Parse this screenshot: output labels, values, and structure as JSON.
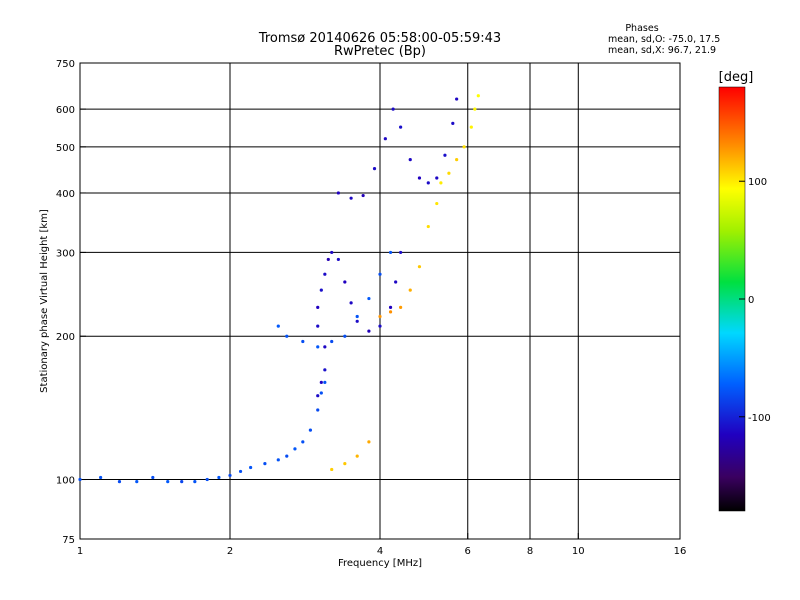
{
  "chart_data": {
    "type": "scatter",
    "title": "Tromsø 20140626 05:58:00-05:59:43",
    "subtitle": "RwPretec (Bp)",
    "xlabel": "Frequency [MHz]",
    "ylabel": "Stationary phase Virtual Height [km]",
    "x_scale": "log",
    "y_scale": "log",
    "xlim": [
      1,
      16
    ],
    "ylim": [
      75,
      750
    ],
    "x_ticks": [
      1,
      2,
      4,
      6,
      8,
      10,
      16
    ],
    "x_tick_labels": [
      "1",
      "2",
      "4",
      "6",
      "8",
      "10",
      "16"
    ],
    "y_ticks": [
      75,
      100,
      200,
      300,
      400,
      500,
      600,
      750
    ],
    "y_tick_labels": [
      "75",
      "100",
      "200",
      "300",
      "400",
      "500",
      "600",
      "750"
    ],
    "x_gridlines": [
      2,
      4,
      6,
      8,
      10
    ],
    "y_gridlines": [
      100,
      200,
      300,
      400,
      500,
      600
    ],
    "grid": true,
    "phases_box": {
      "title": "Phases",
      "line_o": "mean, sd,O: -75.0, 17.5",
      "line_x": "mean, sd,X:  96.7, 21.9"
    },
    "colorbar": {
      "label": "[deg]",
      "range": [
        -180,
        180
      ],
      "ticks": [
        100,
        0,
        -100
      ],
      "tick_labels": [
        "100",
        "0",
        "-100"
      ]
    },
    "series": [
      {
        "values_ref": "low_frequency_trace",
        "points": [
          [
            1.0,
            100,
            -80
          ],
          [
            1.1,
            101,
            -78
          ],
          [
            1.2,
            99,
            -82
          ],
          [
            1.3,
            99,
            -76
          ],
          [
            1.4,
            101,
            -80
          ],
          [
            1.5,
            99,
            -75
          ],
          [
            1.6,
            99,
            -84
          ],
          [
            1.7,
            99,
            -78
          ],
          [
            1.8,
            100,
            -80
          ],
          [
            1.9,
            101,
            -76
          ],
          [
            2.0,
            102,
            -82
          ],
          [
            2.1,
            104,
            -79
          ],
          [
            2.2,
            106,
            -77
          ],
          [
            2.35,
            108,
            -80
          ],
          [
            2.5,
            110,
            -78
          ],
          [
            2.6,
            112,
            -81
          ],
          [
            2.7,
            116,
            -76
          ],
          [
            2.8,
            120,
            -79
          ],
          [
            2.9,
            127,
            -80
          ],
          [
            3.0,
            140,
            -82
          ],
          [
            3.05,
            152,
            -79
          ],
          [
            3.1,
            160,
            -78
          ]
        ]
      },
      {
        "values_ref": "e_layer_trace",
        "points": [
          [
            3.0,
            150,
            -110
          ],
          [
            3.05,
            160,
            -115
          ],
          [
            3.1,
            170,
            -108
          ],
          [
            3.1,
            190,
            -112
          ],
          [
            3.0,
            210,
            -110
          ],
          [
            3.0,
            230,
            -115
          ],
          [
            3.05,
            250,
            -108
          ],
          [
            3.1,
            270,
            -110
          ],
          [
            3.15,
            290,
            -120
          ],
          [
            3.2,
            300,
            -112
          ],
          [
            3.3,
            290,
            -110
          ],
          [
            3.4,
            260,
            -115
          ],
          [
            3.5,
            235,
            -112
          ],
          [
            3.6,
            215,
            -110
          ],
          [
            3.8,
            205,
            -118
          ],
          [
            4.0,
            210,
            -110
          ],
          [
            4.2,
            230,
            -115
          ],
          [
            4.3,
            260,
            -112
          ],
          [
            4.4,
            300,
            -110
          ]
        ]
      },
      {
        "values_ref": "f_layer_low_trace",
        "points": [
          [
            2.5,
            210,
            -75
          ],
          [
            2.6,
            200,
            -78
          ],
          [
            2.8,
            195,
            -80
          ],
          [
            3.0,
            190,
            -76
          ],
          [
            3.2,
            195,
            -82
          ],
          [
            3.4,
            200,
            -80
          ],
          [
            3.6,
            220,
            -78
          ],
          [
            3.8,
            240,
            -75
          ],
          [
            4.0,
            270,
            -80
          ],
          [
            4.2,
            300,
            -78
          ]
        ]
      },
      {
        "values_ref": "f_layer_high_trace",
        "points": [
          [
            3.3,
            400,
            -115
          ],
          [
            3.5,
            390,
            -112
          ],
          [
            3.7,
            395,
            -118
          ],
          [
            3.9,
            450,
            -110
          ],
          [
            4.1,
            520,
            -112
          ],
          [
            4.25,
            600,
            -110
          ],
          [
            4.4,
            550,
            -108
          ],
          [
            4.6,
            470,
            -112
          ],
          [
            4.8,
            430,
            -115
          ],
          [
            5.0,
            420,
            -110
          ],
          [
            5.2,
            430,
            -112
          ],
          [
            5.4,
            480,
            -108
          ],
          [
            5.6,
            560,
            -110
          ],
          [
            5.7,
            630,
            -112
          ]
        ]
      },
      {
        "values_ref": "x_mode_trace_low",
        "points": [
          [
            3.2,
            105,
            110
          ],
          [
            3.4,
            108,
            112
          ],
          [
            3.6,
            112,
            118
          ],
          [
            3.8,
            120,
            122
          ]
        ]
      },
      {
        "values_ref": "x_mode_trace_mid",
        "points": [
          [
            4.0,
            220,
            128
          ],
          [
            4.2,
            225,
            130
          ],
          [
            4.4,
            230,
            126
          ],
          [
            4.6,
            250,
            120
          ],
          [
            4.8,
            280,
            112
          ],
          [
            5.0,
            340,
            105
          ],
          [
            5.2,
            380,
            102
          ]
        ]
      },
      {
        "values_ref": "x_mode_trace_high",
        "points": [
          [
            5.3,
            420,
            100
          ],
          [
            5.5,
            440,
            106
          ],
          [
            5.7,
            470,
            110
          ],
          [
            5.9,
            500,
            104
          ],
          [
            6.1,
            550,
            98
          ],
          [
            6.2,
            600,
            96
          ],
          [
            6.3,
            640,
            94
          ]
        ]
      }
    ]
  }
}
